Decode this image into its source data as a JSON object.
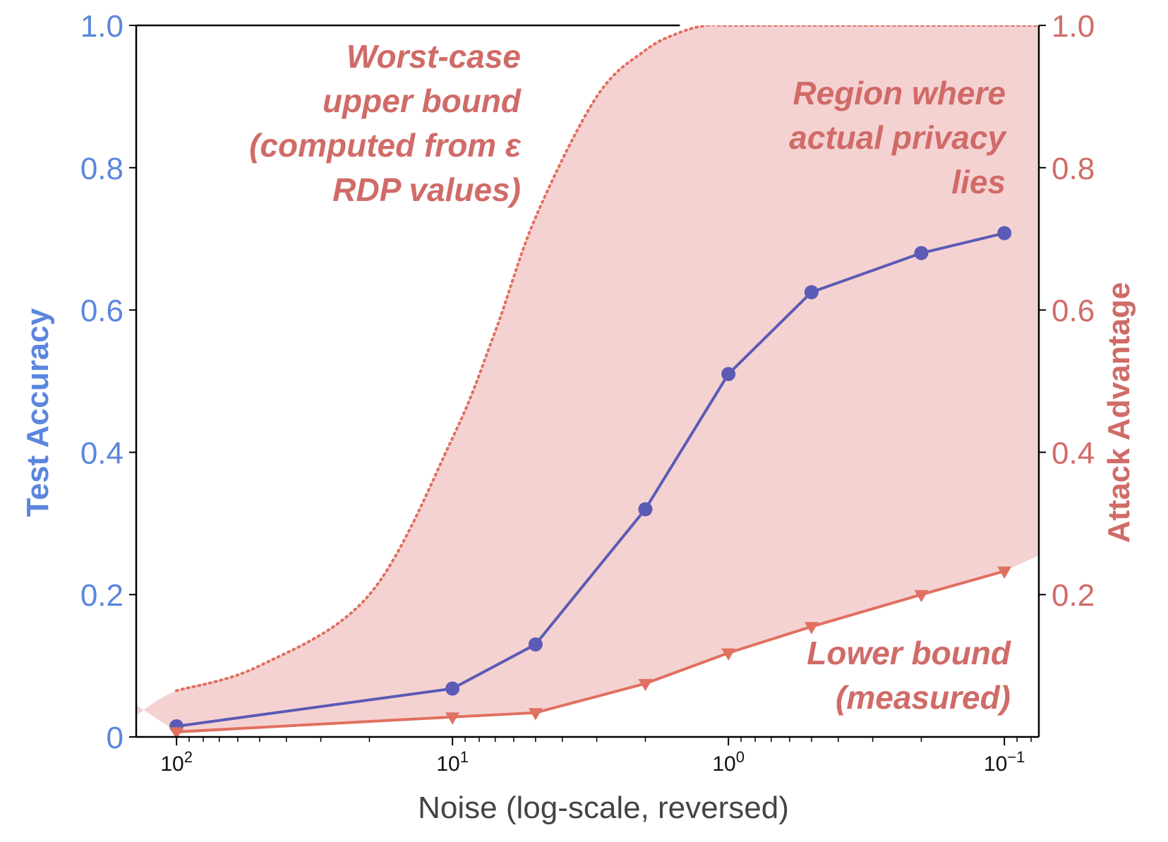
{
  "chart_data": {
    "type": "line",
    "x_scale": "log",
    "x_reversed": true,
    "xlabel": "Noise (log-scale, reversed)",
    "ylabel_left": "Test Accuracy",
    "ylabel_right": "Attack Advantage",
    "xlim": [
      140,
      0.075
    ],
    "ylim_left": [
      0,
      1.0
    ],
    "ylim_right": [
      0,
      1.0
    ],
    "x_ticks": [
      {
        "value": 100,
        "base": "10",
        "exp": "2"
      },
      {
        "value": 10,
        "base": "10",
        "exp": "1"
      },
      {
        "value": 1,
        "base": "10",
        "exp": "0"
      },
      {
        "value": 0.1,
        "base": "10",
        "exp": "−1"
      }
    ],
    "y_ticks_left": [
      {
        "value": 0,
        "label": "0"
      },
      {
        "value": 0.2,
        "label": "0.2"
      },
      {
        "value": 0.4,
        "label": "0.4"
      },
      {
        "value": 0.6,
        "label": "0.6"
      },
      {
        "value": 0.8,
        "label": "0.8"
      },
      {
        "value": 1.0,
        "label": "1.0"
      }
    ],
    "y_ticks_right": [
      {
        "value": 0.2,
        "label": "0.2"
      },
      {
        "value": 0.4,
        "label": "0.4"
      },
      {
        "value": 0.6,
        "label": "0.6"
      },
      {
        "value": 0.8,
        "label": "0.8"
      },
      {
        "value": 1.0,
        "label": "1.0"
      }
    ],
    "grid": false,
    "series": [
      {
        "axis": "left",
        "marker": "circle",
        "color": "#5b5bb5",
        "x": [
          100,
          10,
          5,
          2,
          1,
          0.5,
          0.2,
          0.1
        ],
        "y": [
          0.015,
          0.068,
          0.13,
          0.32,
          0.51,
          0.625,
          0.68,
          0.708
        ]
      },
      {
        "axis": "right",
        "marker": "triangle-down",
        "color": "#e07060",
        "x": [
          100,
          10,
          5,
          2,
          1,
          0.5,
          0.2,
          0.1
        ],
        "y": [
          0.007,
          0.028,
          0.034,
          0.075,
          0.118,
          0.155,
          0.2,
          0.233
        ]
      }
    ],
    "upper_bound": {
      "style": "dotted",
      "color": "#e07060",
      "x": [
        100,
        50,
        20,
        10,
        7,
        5,
        3,
        2,
        1.5,
        1.2,
        1,
        0.5,
        0.2,
        0.1
      ],
      "y": [
        0.065,
        0.1,
        0.2,
        0.42,
        0.57,
        0.73,
        0.9,
        0.965,
        0.99,
        1.0,
        1.0,
        1.0,
        1.0,
        1.0
      ]
    },
    "region": {
      "color": "#f5d2d2",
      "lower_x": [
        140,
        100,
        10,
        5,
        2,
        1,
        0.5,
        0.2,
        0.1,
        0.075
      ],
      "lower_y": [
        0.045,
        0.007,
        0.028,
        0.034,
        0.075,
        0.118,
        0.155,
        0.2,
        0.233,
        0.255
      ]
    },
    "annotations": [
      {
        "id": "upper",
        "lines": [
          "Worst-case",
          "upper bound",
          "(computed from ε",
          "RDP values)"
        ]
      },
      {
        "id": "region",
        "lines": [
          "Region where",
          "actual privacy",
          "lies"
        ]
      },
      {
        "id": "lower",
        "lines": [
          "Lower bound",
          "(measured)"
        ]
      }
    ]
  },
  "colors": {
    "left_axis": "#5b86de",
    "right_axis": "#d06b68",
    "annotation": "#d06b68"
  }
}
